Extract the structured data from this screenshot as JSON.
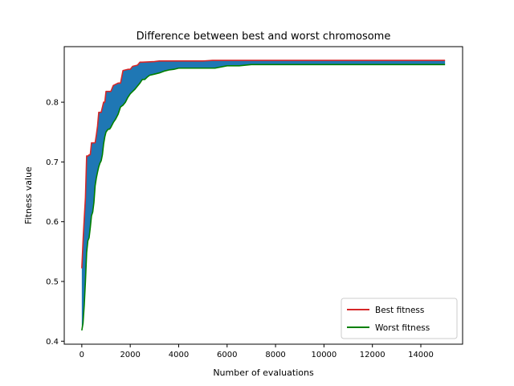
{
  "chart_data": {
    "type": "line",
    "title": "Difference between best and worst chromosome",
    "xlabel": "Number of evaluations",
    "ylabel": "Fitness value",
    "xlim": [
      -725,
      15725
    ],
    "ylim": [
      0.395,
      0.893
    ],
    "xticks": [
      0,
      2000,
      4000,
      6000,
      8000,
      10000,
      12000,
      14000
    ],
    "yticks": [
      0.4,
      0.5,
      0.6,
      0.7,
      0.8
    ],
    "ytick_labels": [
      "0.4",
      "0.5",
      "0.6",
      "0.7",
      "0.8"
    ],
    "grid": false,
    "legend_position": "lower-right",
    "fill_between": {
      "color": "#1f77b4",
      "between": [
        "Best fitness",
        "Worst fitness"
      ]
    },
    "series": [
      {
        "name": "Best fitness",
        "color": "#d62728",
        "x": [
          0,
          60,
          100,
          150,
          200,
          260,
          300,
          350,
          400,
          450,
          500,
          550,
          600,
          650,
          700,
          750,
          800,
          900,
          950,
          1000,
          1100,
          1200,
          1300,
          1400,
          1500,
          1600,
          1700,
          1800,
          1900,
          2000,
          2100,
          2200,
          2300,
          2400,
          2500,
          3000,
          3200,
          4000,
          5000,
          5400,
          6000,
          8000,
          10000,
          12000,
          14000,
          15000
        ],
        "y": [
          0.522,
          0.575,
          0.605,
          0.64,
          0.71,
          0.71,
          0.712,
          0.712,
          0.732,
          0.732,
          0.732,
          0.732,
          0.745,
          0.76,
          0.783,
          0.783,
          0.783,
          0.8,
          0.8,
          0.818,
          0.818,
          0.818,
          0.828,
          0.83,
          0.832,
          0.832,
          0.853,
          0.854,
          0.855,
          0.855,
          0.86,
          0.861,
          0.862,
          0.867,
          0.867,
          0.868,
          0.869,
          0.869,
          0.869,
          0.87,
          0.87,
          0.87,
          0.87,
          0.87,
          0.87,
          0.87
        ]
      },
      {
        "name": "Worst fitness",
        "color": "#008000",
        "x": [
          0,
          50,
          100,
          150,
          200,
          250,
          300,
          350,
          400,
          450,
          500,
          550,
          600,
          650,
          700,
          750,
          800,
          850,
          900,
          950,
          1000,
          1050,
          1100,
          1150,
          1200,
          1300,
          1400,
          1500,
          1600,
          1700,
          1800,
          1900,
          2000,
          2100,
          2200,
          2300,
          2400,
          2500,
          2600,
          2700,
          2800,
          3000,
          3200,
          3400,
          3600,
          3800,
          4000,
          4500,
          5000,
          5500,
          6000,
          6500,
          7000,
          8000,
          10000,
          12000,
          14000,
          15000
        ],
        "y": [
          0.418,
          0.43,
          0.46,
          0.5,
          0.548,
          0.568,
          0.573,
          0.59,
          0.61,
          0.616,
          0.632,
          0.66,
          0.673,
          0.683,
          0.692,
          0.698,
          0.702,
          0.712,
          0.73,
          0.742,
          0.75,
          0.753,
          0.755,
          0.755,
          0.758,
          0.766,
          0.772,
          0.78,
          0.792,
          0.795,
          0.8,
          0.808,
          0.814,
          0.818,
          0.822,
          0.827,
          0.832,
          0.838,
          0.838,
          0.842,
          0.845,
          0.847,
          0.849,
          0.852,
          0.854,
          0.855,
          0.857,
          0.857,
          0.857,
          0.857,
          0.861,
          0.861,
          0.863,
          0.863,
          0.863,
          0.863,
          0.863,
          0.863
        ]
      }
    ]
  }
}
